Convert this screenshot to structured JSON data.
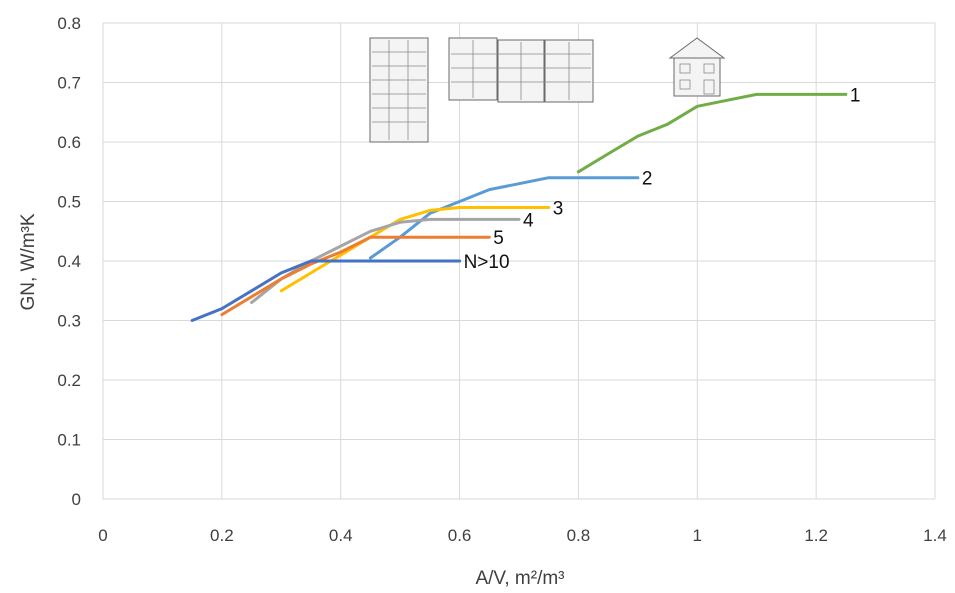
{
  "chart_data": {
    "type": "line",
    "xlabel": "A/V, m²/m³",
    "ylabel": "GN, W/m³K",
    "xlim": [
      0,
      1.4
    ],
    "ylim": [
      0,
      0.8
    ],
    "x_ticks": [
      "0",
      "0.2",
      "0.4",
      "0.6",
      "0.8",
      "1",
      "1.2",
      "1.4"
    ],
    "y_ticks": [
      "0",
      "0.1",
      "0.2",
      "0.3",
      "0.4",
      "0.5",
      "0.6",
      "0.7",
      "0.8"
    ],
    "grid": true,
    "legend": "inline labels at line ends",
    "series": [
      {
        "name": "1",
        "color": "#70ad47",
        "points": [
          [
            0.8,
            0.55
          ],
          [
            0.85,
            0.58
          ],
          [
            0.9,
            0.61
          ],
          [
            0.95,
            0.63
          ],
          [
            1.0,
            0.66
          ],
          [
            1.05,
            0.67
          ],
          [
            1.1,
            0.68
          ],
          [
            1.25,
            0.68
          ]
        ]
      },
      {
        "name": "2",
        "color": "#5b9bd5",
        "points": [
          [
            0.45,
            0.405
          ],
          [
            0.5,
            0.44
          ],
          [
            0.55,
            0.48
          ],
          [
            0.6,
            0.5
          ],
          [
            0.65,
            0.52
          ],
          [
            0.7,
            0.53
          ],
          [
            0.75,
            0.54
          ],
          [
            0.9,
            0.54
          ]
        ]
      },
      {
        "name": "3",
        "color": "#ffc000",
        "points": [
          [
            0.3,
            0.35
          ],
          [
            0.35,
            0.38
          ],
          [
            0.4,
            0.41
          ],
          [
            0.45,
            0.44
          ],
          [
            0.5,
            0.47
          ],
          [
            0.55,
            0.485
          ],
          [
            0.6,
            0.49
          ],
          [
            0.75,
            0.49
          ]
        ]
      },
      {
        "name": "4",
        "color": "#a5a5a5",
        "points": [
          [
            0.25,
            0.33
          ],
          [
            0.3,
            0.37
          ],
          [
            0.35,
            0.4
          ],
          [
            0.4,
            0.425
          ],
          [
            0.45,
            0.45
          ],
          [
            0.5,
            0.465
          ],
          [
            0.55,
            0.47
          ],
          [
            0.7,
            0.47
          ]
        ]
      },
      {
        "name": "5",
        "color": "#ed7d31",
        "points": [
          [
            0.2,
            0.31
          ],
          [
            0.25,
            0.34
          ],
          [
            0.3,
            0.37
          ],
          [
            0.35,
            0.395
          ],
          [
            0.4,
            0.415
          ],
          [
            0.45,
            0.44
          ],
          [
            0.5,
            0.44
          ],
          [
            0.65,
            0.44
          ]
        ]
      },
      {
        "name": "N>10",
        "color": "#4472c4",
        "points": [
          [
            0.15,
            0.3
          ],
          [
            0.2,
            0.32
          ],
          [
            0.25,
            0.35
          ],
          [
            0.3,
            0.38
          ],
          [
            0.35,
            0.4
          ],
          [
            0.6,
            0.4
          ]
        ]
      }
    ]
  }
}
